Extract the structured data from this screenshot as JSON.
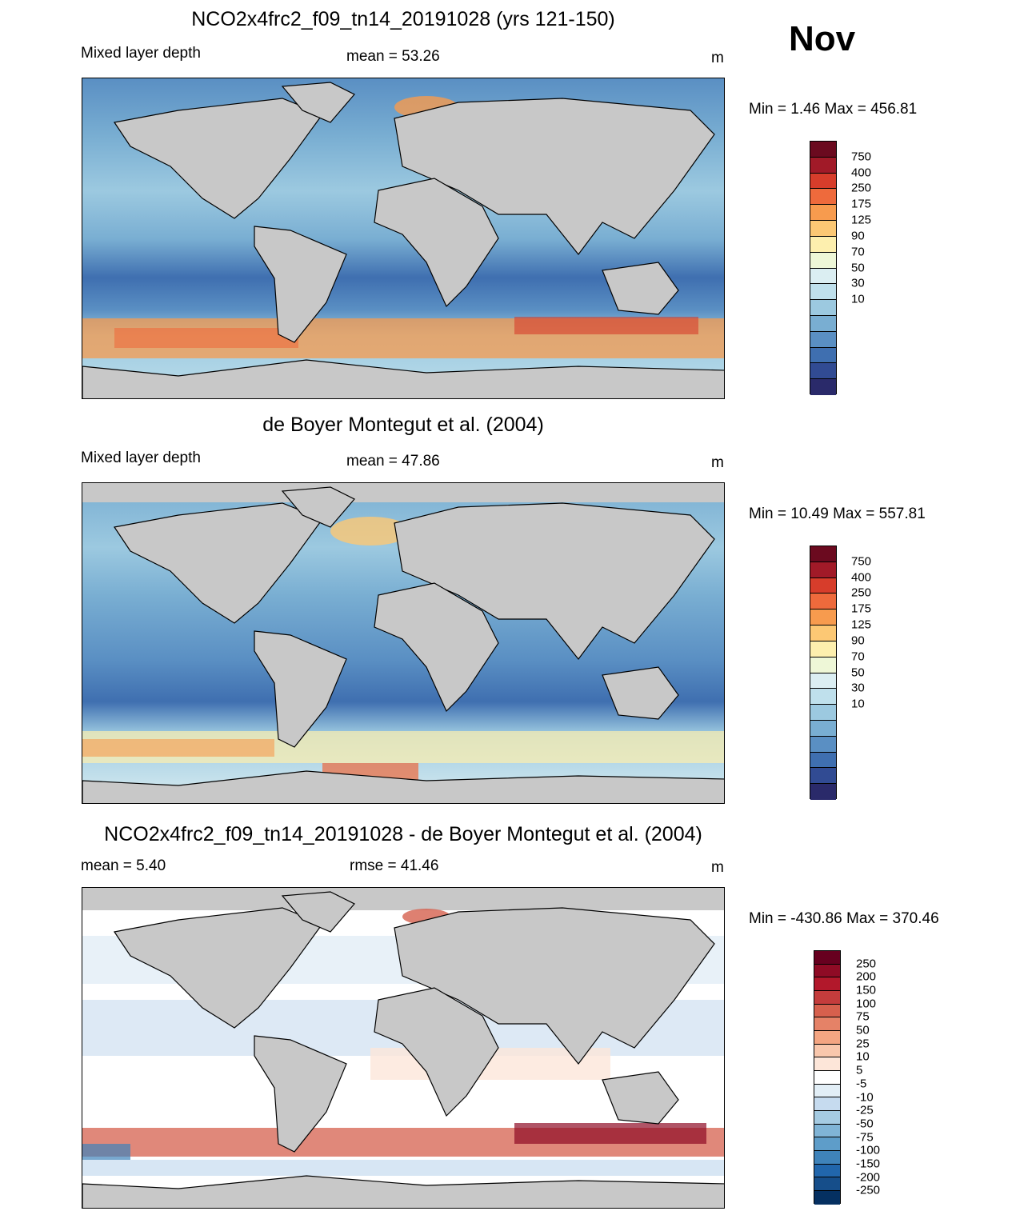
{
  "month": "Nov",
  "panels": [
    {
      "title": "NCO2x4frc2_f09_tn14_20191028 (yrs 121-150)",
      "left_label": "Mixed layer depth",
      "center_label": "mean =  53.26",
      "units": "m",
      "minmax": "Min =    1.46 Max = 456.81",
      "colorbar_labels": [
        "750",
        "400",
        "250",
        "175",
        "125",
        "90",
        "70",
        "50",
        "30",
        "10"
      ]
    },
    {
      "title": "de Boyer Montegut et al. (2004)",
      "left_label": "Mixed layer depth",
      "center_label": "mean =  47.86",
      "units": "m",
      "minmax": "Min =  10.49 Max = 557.81",
      "colorbar_labels": [
        "750",
        "400",
        "250",
        "175",
        "125",
        "90",
        "70",
        "50",
        "30",
        "10"
      ]
    },
    {
      "title": "NCO2x4frc2_f09_tn14_20191028 - de Boyer Montegut et al. (2004)",
      "left_label": "mean =   5.40",
      "center_label": "rmse =  41.46",
      "units": "m",
      "minmax": "Min = -430.86 Max = 370.46",
      "colorbar_labels": [
        "250",
        "200",
        "150",
        "100",
        "75",
        "50",
        "25",
        "10",
        "5",
        "-5",
        "-10",
        "-25",
        "-50",
        "-75",
        "-100",
        "-150",
        "-200",
        "-250"
      ]
    }
  ],
  "palettes": {
    "mld": [
      "#6b0a1f",
      "#a11a28",
      "#d73d2b",
      "#ee6a3c",
      "#f79b4e",
      "#fcc874",
      "#fdefae",
      "#eef7d7",
      "#dbeef2",
      "#bfe0ec",
      "#9cc9e0",
      "#79aed2",
      "#5a8fc3",
      "#3f6fb0",
      "#314b93",
      "#2a2a6a"
    ],
    "diff": [
      "#67001f",
      "#8f0b25",
      "#b2182b",
      "#c43c3c",
      "#d6604d",
      "#e58267",
      "#f4a582",
      "#f9c7ac",
      "#fde6d9",
      "#ffffff",
      "#e2eef6",
      "#c6dbef",
      "#a5cbe2",
      "#80b4d6",
      "#5e9dc9",
      "#3f83ba",
      "#2166ac",
      "#164e8a",
      "#053061"
    ]
  },
  "land_color": "#c8c8c8"
}
